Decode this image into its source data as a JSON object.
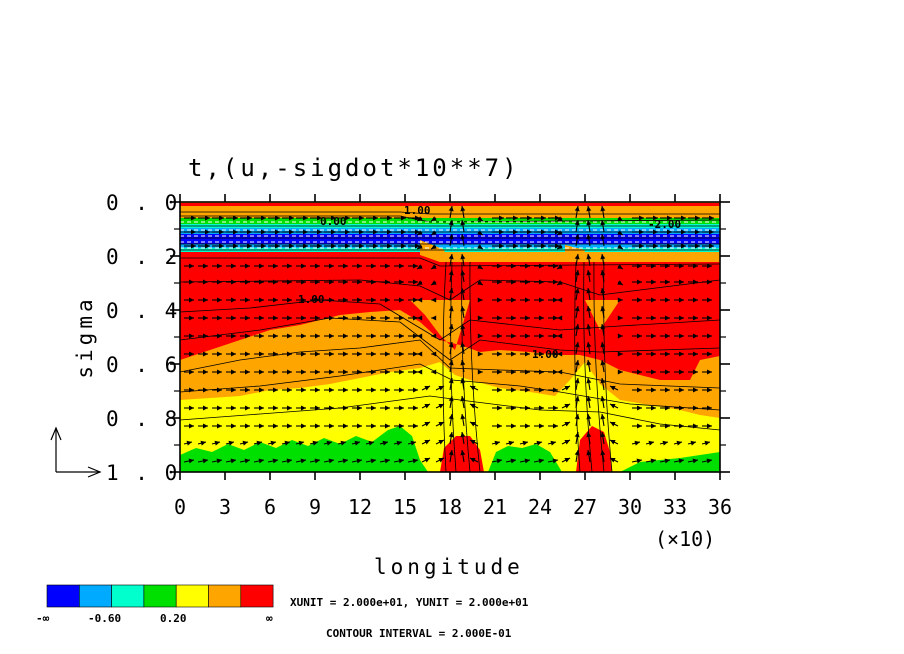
{
  "chart_data": {
    "type": "heatmap",
    "title": "t,(u,-sigdot*10**7)",
    "xlabel": "longitude",
    "xlabel_multiplier": "(×10)",
    "ylabel": "sigma",
    "xlim": [
      0,
      36
    ],
    "ylim": [
      1.0,
      0.0
    ],
    "x_ticks": [
      "0",
      "3",
      "6",
      "9",
      "12",
      "15",
      "18",
      "21",
      "24",
      "27",
      "30",
      "33",
      "36"
    ],
    "y_ticks": [
      "0.0",
      "0.2",
      "0.4",
      "0.6",
      "0.8",
      "1.0"
    ],
    "colorbar": {
      "colors": [
        "#0000ff",
        "#00aaff",
        "#00ffcc",
        "#00e000",
        "#ffff00",
        "#ffa500",
        "#ff0000"
      ],
      "labels": [
        "-∞",
        "-0.60",
        "0.20",
        "∞"
      ]
    },
    "contour_labels": [
      "1.00",
      "0.00",
      "-2.00",
      "1.00",
      "1.00"
    ],
    "xunit_text": "XUNIT = 2.000e+01, YUNIT = 2.000e+01",
    "contour_interval_text": "CONTOUR INTERVAL = 2.000E-01",
    "vector_legend": "unit vector arrows (u, -sigdot*10**7)"
  }
}
